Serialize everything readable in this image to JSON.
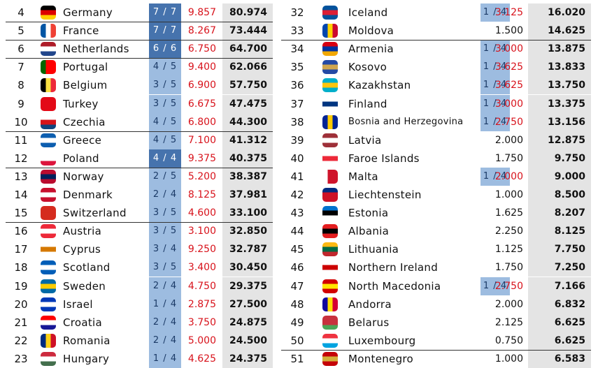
{
  "left": {
    "rows": [
      [
        "4",
        "Germany",
        "7 / 7",
        "9.857",
        "80.974"
      ],
      [
        "5",
        "France",
        "7 / 7",
        "8.267",
        "73.444"
      ],
      [
        "6",
        "Netherlands",
        "6 / 6",
        "6.750",
        "64.700"
      ],
      [
        "7",
        "Portugal",
        "4 / 5",
        "9.400",
        "62.066"
      ],
      [
        "8",
        "Belgium",
        "3 / 5",
        "6.900",
        "57.750"
      ],
      [
        "9",
        "Turkey",
        "3 / 5",
        "6.675",
        "47.475"
      ],
      [
        "10",
        "Czechia",
        "4 / 5",
        "6.800",
        "44.300"
      ],
      [
        "11",
        "Greece",
        "4 / 5",
        "7.100",
        "41.312"
      ],
      [
        "12",
        "Poland",
        "4 / 4",
        "9.375",
        "40.375"
      ],
      [
        "13",
        "Norway",
        "2 / 5",
        "5.200",
        "38.387"
      ],
      [
        "14",
        "Denmark",
        "2 / 4",
        "8.125",
        "37.981"
      ],
      [
        "15",
        "Switzerland",
        "3 / 5",
        "4.600",
        "33.100"
      ],
      [
        "16",
        "Austria",
        "3 / 5",
        "3.100",
        "32.850"
      ],
      [
        "17",
        "Cyprus",
        "3 / 4",
        "9.250",
        "32.787"
      ],
      [
        "18",
        "Scotland",
        "3 / 5",
        "3.400",
        "30.450"
      ],
      [
        "19",
        "Sweden",
        "2 / 4",
        "4.750",
        "29.375"
      ],
      [
        "20",
        "Israel",
        "1 / 4",
        "2.875",
        "27.500"
      ],
      [
        "21",
        "Croatia",
        "2 / 4",
        "3.750",
        "24.875"
      ],
      [
        "22",
        "Romania",
        "2 / 4",
        "5.000",
        "24.500"
      ],
      [
        "23",
        "Hungary",
        "1 / 4",
        "4.625",
        "24.375"
      ]
    ]
  },
  "right": {
    "rows": [
      [
        "32",
        "Iceland",
        "1 / 4",
        "3.125",
        "16.020"
      ],
      [
        "33",
        "Moldova",
        null,
        "1.500",
        "14.625"
      ],
      [
        "34",
        "Armenia",
        "1 / 4",
        "3.000",
        "13.875"
      ],
      [
        "35",
        "Kosovo",
        "1 / 4",
        "3.625",
        "13.833"
      ],
      [
        "36",
        "Kazakhstan",
        "1 / 4",
        "3.625",
        "13.750"
      ],
      [
        "37",
        "Finland",
        "1 / 4",
        "3.000",
        "13.375"
      ],
      [
        "38",
        "Bosnia and Herzegovina",
        "1 / 4",
        "2.750",
        "13.156"
      ],
      [
        "39",
        "Latvia",
        null,
        "2.000",
        "12.875"
      ],
      [
        "40",
        "Faroe Islands",
        null,
        "1.750",
        "9.750"
      ],
      [
        "41",
        "Malta",
        "1 / 4",
        "2.000",
        "9.000"
      ],
      [
        "42",
        "Liechtenstein",
        null,
        "1.000",
        "8.500"
      ],
      [
        "43",
        "Estonia",
        null,
        "1.625",
        "8.207"
      ],
      [
        "44",
        "Albania",
        null,
        "2.250",
        "8.125"
      ],
      [
        "45",
        "Lithuania",
        null,
        "1.125",
        "7.750"
      ],
      [
        "46",
        "Northern Ireland",
        null,
        "1.750",
        "7.250"
      ],
      [
        "47",
        "North Macedonia",
        "1 / 4",
        "2.750",
        "7.166"
      ],
      [
        "48",
        "Andorra",
        null,
        "2.000",
        "6.832"
      ],
      [
        "49",
        "Belarus",
        null,
        "2.125",
        "6.625"
      ],
      [
        "50",
        "Luxembourg",
        null,
        "0.750",
        "6.625"
      ],
      [
        "51",
        "Montenegro",
        null,
        "1.000",
        "6.583"
      ]
    ]
  }
}
